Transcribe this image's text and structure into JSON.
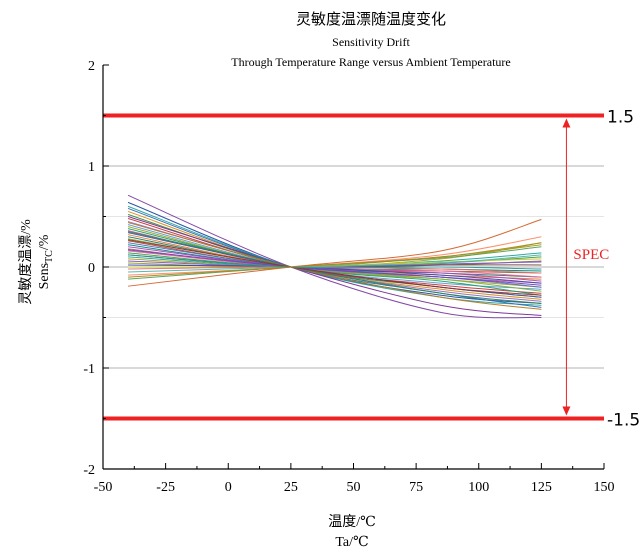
{
  "chart_data": {
    "type": "line",
    "title": "灵敏度温漂随温度变化",
    "subtitle_1": "Sensitivity Drift",
    "subtitle_2": "Through Temperature Range versus Ambient Temperature",
    "xlabel_cn": "温度/℃",
    "xlabel_en": "Ta/℃",
    "ylabel_cn": "灵敏度温漂/%",
    "ylabel_en_main": "Sens",
    "ylabel_en_sub": "TC",
    "ylabel_en_suffix": "/%",
    "xlim": [
      -50,
      150
    ],
    "ylim": [
      -2,
      2
    ],
    "x_ticks": [
      -50,
      -25,
      0,
      25,
      50,
      75,
      100,
      125,
      150
    ],
    "x_tick_labels": [
      "-50",
      "-25",
      "0",
      "25",
      "50",
      "75",
      "100",
      "125",
      "150"
    ],
    "y_ticks": [
      -2,
      -1,
      0,
      1,
      2
    ],
    "y_tick_labels": [
      "-2",
      "-1",
      "0",
      "1",
      "2"
    ],
    "grid": "horizontal",
    "spec": {
      "upper": 1.5,
      "lower": -1.5,
      "upper_label": "1.5",
      "lower_label": "-1.5",
      "label": "SPEC",
      "arrow_x": 135,
      "color": "#ee2222"
    },
    "x": [
      -40,
      25,
      85,
      125
    ],
    "series": [
      {
        "color": "#1f4e9e",
        "values": [
          0.64,
          0,
          -0.28,
          -0.36
        ]
      },
      {
        "color": "#7b3fa0",
        "values": [
          0.71,
          0,
          -0.45,
          -0.5
        ]
      },
      {
        "color": "#2aa2a0",
        "values": [
          0.6,
          0,
          -0.3,
          -0.38
        ]
      },
      {
        "color": "#d98b1c",
        "values": [
          0.55,
          0,
          -0.22,
          -0.32
        ]
      },
      {
        "color": "#3b8e3b",
        "values": [
          0.52,
          0,
          -0.2,
          -0.3
        ]
      },
      {
        "color": "#c23b3b",
        "values": [
          0.48,
          0,
          -0.18,
          -0.26
        ]
      },
      {
        "color": "#8e6bbf",
        "values": [
          0.45,
          0,
          -0.24,
          -0.34
        ]
      },
      {
        "color": "#5a9bd4",
        "values": [
          0.42,
          0,
          -0.16,
          -0.22
        ]
      },
      {
        "color": "#a0a028",
        "values": [
          0.4,
          0,
          -0.12,
          -0.2
        ]
      },
      {
        "color": "#1fa36b",
        "values": [
          0.38,
          0,
          -0.14,
          -0.28
        ]
      },
      {
        "color": "#cc5599",
        "values": [
          0.36,
          0,
          -0.1,
          -0.16
        ]
      },
      {
        "color": "#4455aa",
        "values": [
          0.34,
          0,
          -0.2,
          -0.3
        ]
      },
      {
        "color": "#e07a30",
        "values": [
          0.32,
          0,
          -0.08,
          -0.12
        ]
      },
      {
        "color": "#2a7a7a",
        "values": [
          0.3,
          0,
          -0.06,
          -0.1
        ]
      },
      {
        "color": "#7cb342",
        "values": [
          0.28,
          0,
          -0.12,
          -0.24
        ]
      },
      {
        "color": "#995533",
        "values": [
          0.26,
          0,
          -0.04,
          -0.06
        ]
      },
      {
        "color": "#5c6bc0",
        "values": [
          0.24,
          0,
          -0.1,
          -0.2
        ]
      },
      {
        "color": "#00897b",
        "values": [
          0.22,
          0,
          -0.02,
          -0.04
        ]
      },
      {
        "color": "#ab47bc",
        "values": [
          0.2,
          0,
          -0.06,
          -0.14
        ]
      },
      {
        "color": "#8d6e63",
        "values": [
          0.18,
          0,
          0.02,
          0.06
        ]
      },
      {
        "color": "#f06292",
        "values": [
          0.16,
          0,
          -0.04,
          -0.1
        ]
      },
      {
        "color": "#43a047",
        "values": [
          0.14,
          0,
          0.04,
          0.1
        ]
      },
      {
        "color": "#6d4c41",
        "values": [
          0.12,
          0,
          0.02,
          0.02
        ]
      },
      {
        "color": "#26a69a",
        "values": [
          0.1,
          0,
          0.06,
          0.14
        ]
      },
      {
        "color": "#b0a020",
        "values": [
          0.08,
          0,
          0.08,
          0.24
        ]
      },
      {
        "color": "#7e57c2",
        "values": [
          0.06,
          0,
          0.03,
          0.05
        ]
      },
      {
        "color": "#9e9d24",
        "values": [
          0.04,
          0,
          0.1,
          0.22
        ]
      },
      {
        "color": "#3949ab",
        "values": [
          0.02,
          0,
          -0.08,
          -0.16
        ]
      },
      {
        "color": "#c0ca33",
        "values": [
          0.0,
          0,
          0.05,
          0.08
        ]
      },
      {
        "color": "#e57373",
        "values": [
          -0.02,
          0,
          -0.02,
          -0.06
        ]
      },
      {
        "color": "#4db6ac",
        "values": [
          -0.05,
          0,
          0.04,
          0.12
        ]
      },
      {
        "color": "#ff8a65",
        "values": [
          -0.08,
          0,
          0.12,
          0.3
        ]
      },
      {
        "color": "#5d9c59",
        "values": [
          -0.12,
          0,
          0.09,
          0.2
        ]
      },
      {
        "color": "#d4622a",
        "values": [
          -0.19,
          0,
          0.16,
          0.47
        ]
      },
      {
        "color": "#7a2f8f",
        "values": [
          0.5,
          0,
          -0.38,
          -0.48
        ]
      },
      {
        "color": "#2b6cb0",
        "values": [
          0.58,
          0,
          -0.26,
          -0.4
        ]
      },
      {
        "color": "#b7791f",
        "values": [
          0.44,
          0,
          -0.3,
          -0.42
        ]
      },
      {
        "color": "#2f855a",
        "values": [
          0.35,
          0,
          -0.26,
          -0.36
        ]
      },
      {
        "color": "#9b2c2c",
        "values": [
          0.27,
          0,
          -0.2,
          -0.28
        ]
      },
      {
        "color": "#6b46c1",
        "values": [
          0.17,
          0,
          -0.1,
          -0.18
        ]
      },
      {
        "color": "#319795",
        "values": [
          0.12,
          0,
          0.0,
          -0.02
        ]
      },
      {
        "color": "#a58c1b",
        "values": [
          -0.1,
          0,
          0.1,
          0.24
        ]
      }
    ]
  }
}
